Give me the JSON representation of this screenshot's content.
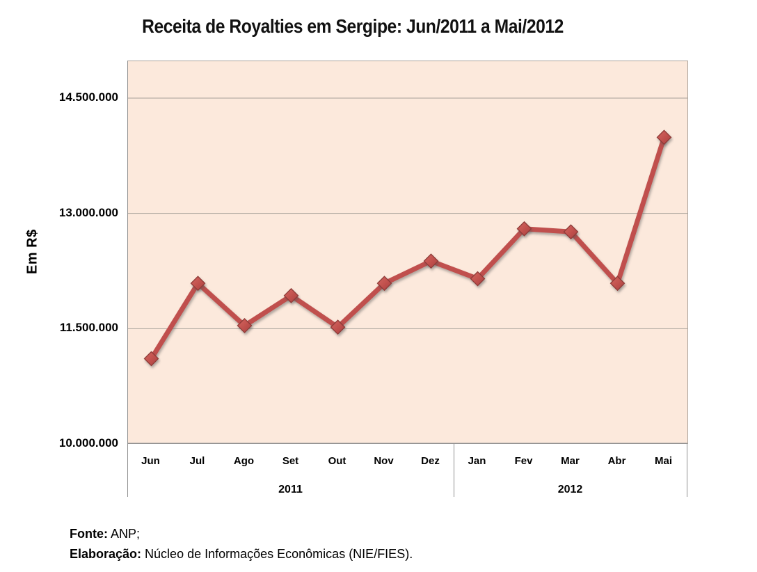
{
  "chart_data": {
    "type": "line",
    "title": "Receita de Royalties em Sergipe: Jun/2011 a Mai/2012",
    "xlabel": "",
    "ylabel": "Em R$",
    "categories": [
      "Jun",
      "Jul",
      "Ago",
      "Set",
      "Out",
      "Nov",
      "Dez",
      "Jan",
      "Fev",
      "Mar",
      "Abr",
      "Mai"
    ],
    "year_groups": [
      {
        "label": "2011",
        "start": 0,
        "span": 7
      },
      {
        "label": "2012",
        "start": 7,
        "span": 5
      }
    ],
    "values": [
      11110000,
      12090000,
      11540000,
      11930000,
      11520000,
      12090000,
      12380000,
      12150000,
      12800000,
      12760000,
      12090000,
      13990000
    ],
    "ytick_values": [
      14500000,
      13000000,
      11500000,
      10000000
    ],
    "ytick_labels": [
      "14.500.000",
      "13.000.000",
      "11.500.000",
      "10.000.000"
    ],
    "gridline_values": [
      14500000,
      13000000,
      11500000
    ],
    "ylim": [
      10000000,
      14980000
    ],
    "grid": "horizontal",
    "legend": "none",
    "marker": "diamond",
    "series_color": "#c0504d",
    "marker_edge_color": "#8e3a37",
    "plot_bg_color": "#fce9dc",
    "gridline_color": "#a6a099",
    "axis_color": "#8f8f8f"
  },
  "footer": {
    "fonte_label": "Fonte:",
    "fonte_value": " ANP;",
    "elaboracao_label": "Elaboração:",
    "elaboracao_value": " Núcleo de Informações Econômicas (NIE/FIES)."
  }
}
